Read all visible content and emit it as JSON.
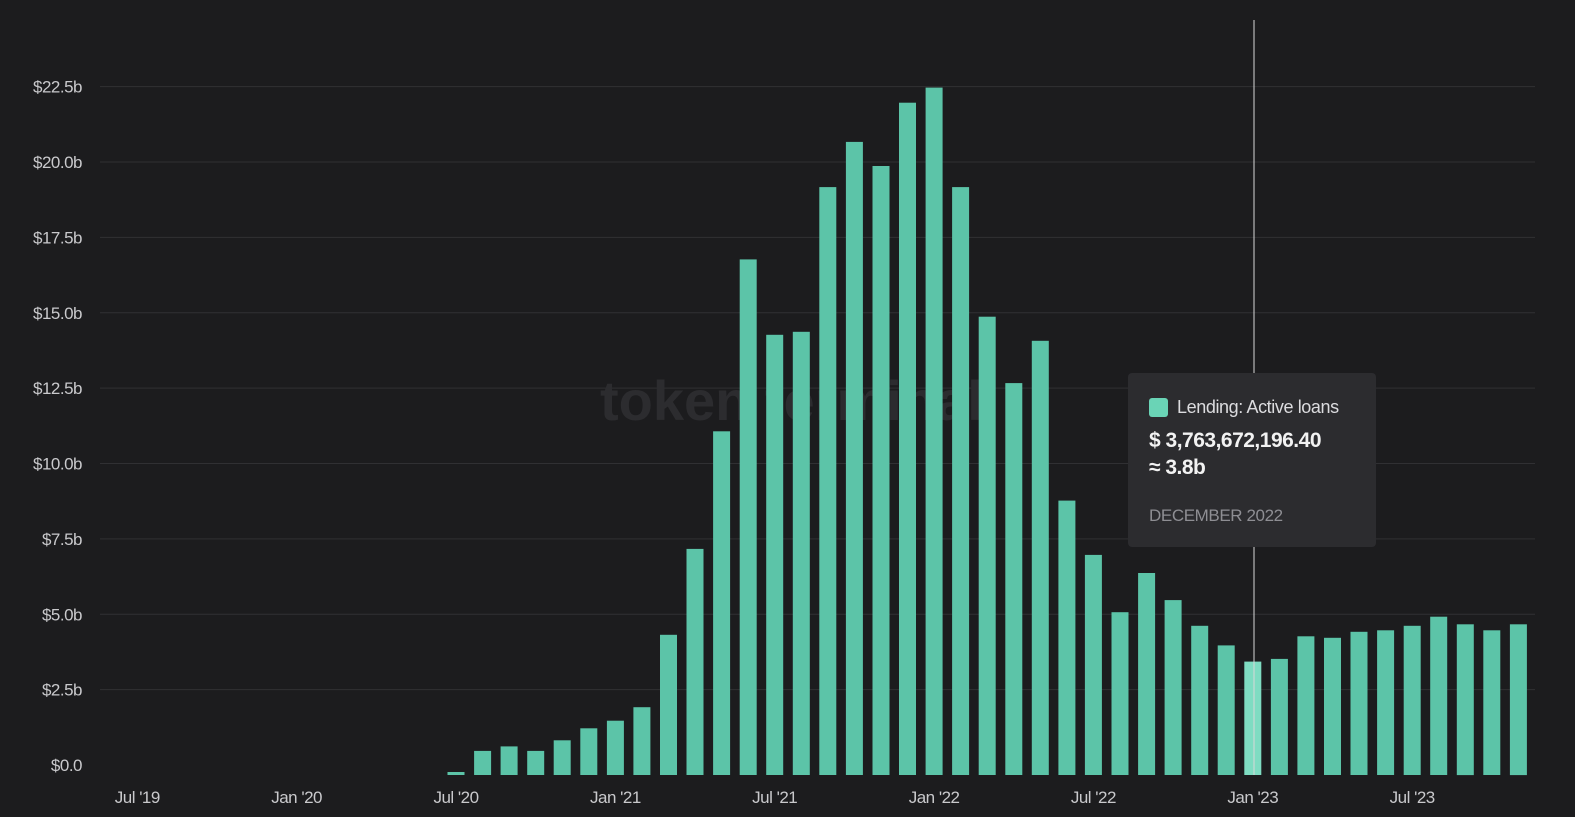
{
  "chart_data": {
    "type": "bar",
    "title": "",
    "xlabel": "",
    "ylabel": "",
    "ylim": [
      0,
      24
    ],
    "grid": true,
    "y_ticks": [
      "$0.0",
      "$2.5b",
      "$5.0b",
      "$7.5b",
      "$10.0b",
      "$12.5b",
      "$15.0b",
      "$17.5b",
      "$20.0b",
      "$22.5b"
    ],
    "x_ticks": [
      "Jul '19",
      "Jan '20",
      "Jul '20",
      "Jan '21",
      "Jul '21",
      "Jan '22",
      "Jul '22",
      "Jan '23",
      "Jul '23"
    ],
    "series": [
      {
        "name": "Lending: Active loans",
        "color": "#5cc4a8",
        "start_month": "2019-05",
        "values": [
          0,
          0,
          0,
          0,
          0,
          0,
          0,
          0,
          0,
          0,
          0,
          0,
          0,
          0,
          0.1,
          0.8,
          0.95,
          0.8,
          1.15,
          1.55,
          1.8,
          2.25,
          4.65,
          7.5,
          11.4,
          17.1,
          14.6,
          14.7,
          19.5,
          21.0,
          20.2,
          22.3,
          22.8,
          19.5,
          15.2,
          13.0,
          14.4,
          9.1,
          7.3,
          5.4,
          6.7,
          5.8,
          4.95,
          4.3,
          3.76,
          3.85,
          4.6,
          4.55,
          4.75,
          4.8,
          4.95,
          5.25,
          5.0,
          4.8,
          5.0
        ]
      }
    ]
  },
  "watermark": "token terminal",
  "tooltip": {
    "series_label": "Lending: Active loans",
    "value": "$ 3,763,672,196.40",
    "approx": "≈ 3.8b",
    "date": "DECEMBER 2022",
    "swatch_color": "#6ad4b6"
  }
}
